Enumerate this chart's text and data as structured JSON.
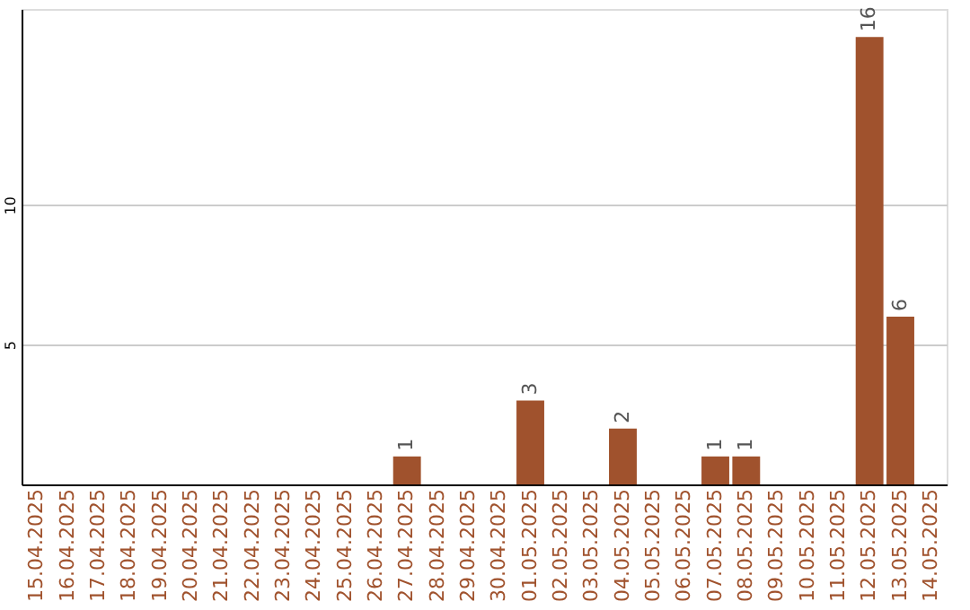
{
  "chart_data": {
    "type": "bar",
    "categories": [
      "15.04.2025",
      "16.04.2025",
      "17.04.2025",
      "18.04.2025",
      "19.04.2025",
      "20.04.2025",
      "21.04.2025",
      "22.04.2025",
      "23.04.2025",
      "24.04.2025",
      "25.04.2025",
      "26.04.2025",
      "27.04.2025",
      "28.04.2025",
      "29.04.2025",
      "30.04.2025",
      "01.05.2025",
      "02.05.2025",
      "03.05.2025",
      "04.05.2025",
      "05.05.2025",
      "06.05.2025",
      "07.05.2025",
      "08.05.2025",
      "09.05.2025",
      "10.05.2025",
      "11.05.2025",
      "12.05.2025",
      "13.05.2025",
      "14.05.2025"
    ],
    "values": [
      null,
      null,
      null,
      null,
      null,
      null,
      null,
      null,
      null,
      null,
      null,
      null,
      1,
      null,
      null,
      null,
      3,
      null,
      null,
      2,
      null,
      null,
      1,
      1,
      null,
      null,
      null,
      16,
      6,
      null
    ],
    "color": "#a0522d",
    "ylim": [
      0,
      17
    ],
    "yticks": [
      5,
      10
    ],
    "grid": "y",
    "data_labels": true
  }
}
